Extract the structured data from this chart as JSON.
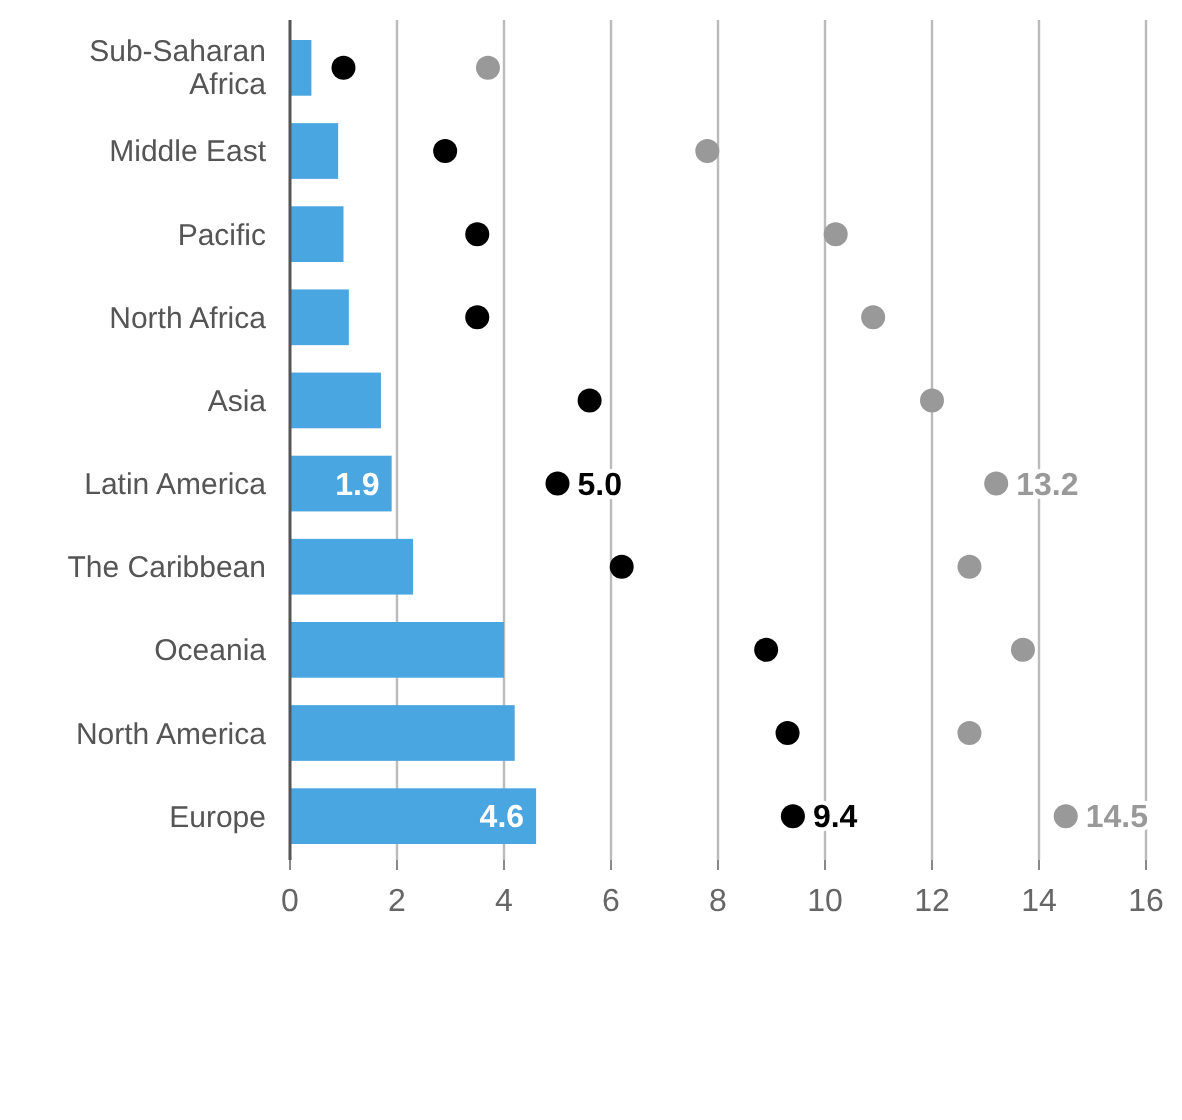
{
  "chart_data": {
    "type": "bar",
    "orientation": "horizontal",
    "categories": [
      "Sub-Saharan Africa",
      "Middle East",
      "Pacific",
      "North Africa",
      "Asia",
      "Latin America",
      "The Caribbean",
      "Oceania",
      "North America",
      "Europe"
    ],
    "series": [
      {
        "color": "#4aa6e0",
        "values": [
          0.4,
          0.9,
          1.0,
          1.1,
          1.7,
          1.9,
          2.3,
          4.0,
          4.2,
          4.6
        ],
        "value_labels": [
          null,
          null,
          null,
          null,
          null,
          "1.9",
          null,
          null,
          null,
          "4.6"
        ]
      },
      {
        "type": "scatter",
        "color": "#000000",
        "values": [
          1.0,
          2.9,
          3.5,
          3.5,
          5.6,
          5.0,
          6.2,
          8.9,
          9.3,
          9.4
        ],
        "value_labels": [
          null,
          null,
          null,
          null,
          null,
          "5.0",
          null,
          null,
          null,
          "9.4"
        ]
      },
      {
        "type": "scatter",
        "color": "#999999",
        "values": [
          3.7,
          7.8,
          10.2,
          10.9,
          12.0,
          13.2,
          12.7,
          13.7,
          12.7,
          14.5
        ],
        "value_labels": [
          null,
          null,
          null,
          null,
          null,
          "13.2",
          null,
          null,
          null,
          "14.5"
        ]
      }
    ],
    "xlim": [
      0,
      16
    ],
    "xticks": [
      0,
      2,
      4,
      6,
      8,
      10,
      12,
      14,
      16
    ],
    "grid": "x",
    "marker": "circle"
  }
}
